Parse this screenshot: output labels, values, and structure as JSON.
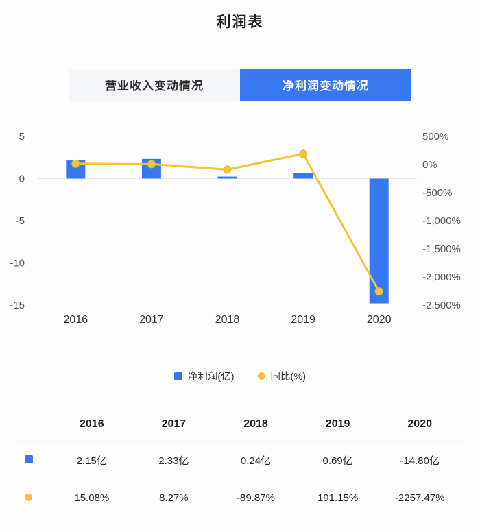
{
  "page": {
    "title": "利润表"
  },
  "tabs": [
    {
      "label": "营业收入变动情况",
      "active": false
    },
    {
      "label": "净利润变动情况",
      "active": true
    }
  ],
  "colors": {
    "primary_blue": "#3778f1",
    "accent_yellow": "#f3c433",
    "accent_yellow_dark": "#e9b62b",
    "tab_inactive_bg": "#f4f6f9",
    "tick_gray": "#555555",
    "zero_line": "#e5e7ea"
  },
  "chart_data": {
    "type": "bar+line",
    "categories": [
      "2016",
      "2017",
      "2018",
      "2019",
      "2020"
    ],
    "series": [
      {
        "name": "净利润(亿)",
        "type": "bar",
        "axis": "left",
        "color": "#3778f1",
        "values": [
          2.15,
          2.33,
          0.24,
          0.69,
          -14.8
        ]
      },
      {
        "name": "同比(%)",
        "type": "line",
        "axis": "right",
        "color": "#f3c433",
        "values": [
          15.08,
          8.27,
          -89.87,
          191.15,
          -2257.47
        ]
      }
    ],
    "left_axis": {
      "min": -15,
      "max": 5,
      "ticks": [
        {
          "value": 5,
          "label": "5"
        },
        {
          "value": 0,
          "label": "0"
        },
        {
          "value": -5,
          "label": "-5"
        },
        {
          "value": -10,
          "label": "-10"
        },
        {
          "value": -15,
          "label": "-15"
        }
      ]
    },
    "right_axis": {
      "min": -2500,
      "max": 500,
      "ticks": [
        {
          "value": 500,
          "label": "500%"
        },
        {
          "value": 0,
          "label": "0%"
        },
        {
          "value": -500,
          "label": "-500%"
        },
        {
          "value": -1000,
          "label": "-1,000%"
        },
        {
          "value": -1500,
          "label": "-1,500%"
        },
        {
          "value": -2000,
          "label": "-2,000%"
        },
        {
          "value": -2500,
          "label": "-2,500%"
        }
      ]
    },
    "legend": [
      "净利润(亿)",
      "同比(%)"
    ],
    "grid": "zero-line-only",
    "legend_position": "bottom-center"
  },
  "table": {
    "header": [
      "2016",
      "2017",
      "2018",
      "2019",
      "2020"
    ],
    "rows": [
      {
        "marker": "blue-square",
        "values": [
          "2.15亿",
          "2.33亿",
          "0.24亿",
          "0.69亿",
          "-14.80亿"
        ]
      },
      {
        "marker": "yellow-circle",
        "values": [
          "15.08%",
          "8.27%",
          "-89.87%",
          "191.15%",
          "-2257.47%"
        ]
      }
    ]
  }
}
